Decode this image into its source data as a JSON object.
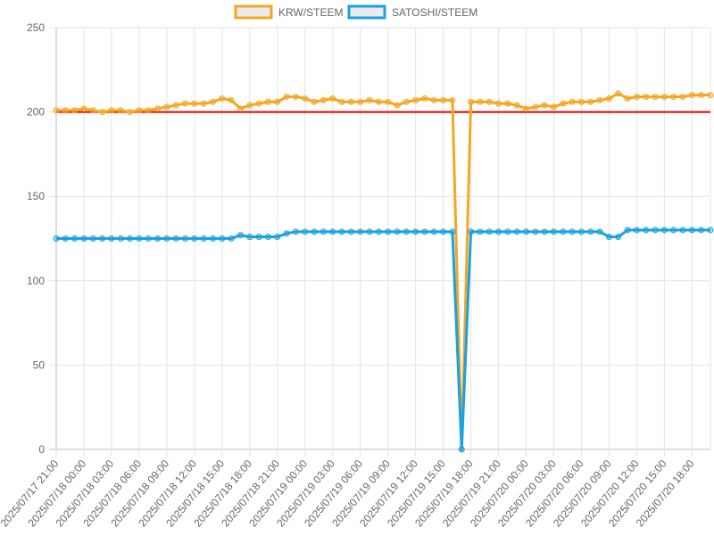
{
  "chart_data": {
    "type": "line",
    "legend_position": "top-center",
    "grid": true,
    "ylim": [
      0,
      250
    ],
    "y_ticks": [
      0,
      50,
      100,
      150,
      200,
      250
    ],
    "x_tick_labels": [
      "2025/07/17 21:00",
      "2025/07/18 00:00",
      "2025/07/18 03:00",
      "2025/07/18 06:00",
      "2025/07/18 09:00",
      "2025/07/18 12:00",
      "2025/07/18 15:00",
      "2025/07/18 18:00",
      "2025/07/18 21:00",
      "2025/07/19 00:00",
      "2025/07/19 03:00",
      "2025/07/19 06:00",
      "2025/07/19 09:00",
      "2025/07/19 12:00",
      "2025/07/19 15:00",
      "2025/07/19 18:00",
      "2025/07/19 21:00",
      "2025/07/20 00:00",
      "2025/07/20 03:00",
      "2025/07/20 06:00",
      "2025/07/20 09:00",
      "2025/07/20 12:00",
      "2025/07/20 15:00",
      "2025/07/20 18:00"
    ],
    "reference_line": {
      "value": 200,
      "color": "#e00000"
    },
    "series": [
      {
        "name": "KRW/STEEM",
        "color": "#f5a623",
        "values": [
          201,
          201,
          201,
          202,
          201,
          200,
          201,
          201,
          200,
          201,
          201,
          202,
          203,
          204,
          205,
          205,
          205,
          206,
          208,
          207,
          202,
          204,
          205,
          206,
          206,
          209,
          209,
          208,
          206,
          207,
          208,
          206,
          206,
          206,
          207,
          206,
          206,
          204,
          206,
          207,
          208,
          207,
          207,
          207,
          0,
          206,
          206,
          206,
          205,
          205,
          204,
          202,
          203,
          204,
          203,
          205,
          206,
          206,
          206,
          207,
          208,
          211,
          208,
          209,
          209,
          209,
          209,
          209,
          209,
          210,
          210,
          210
        ]
      },
      {
        "name": "SATOSHI/STEEM",
        "color": "#1ba1e2",
        "values": [
          125,
          125,
          125,
          125,
          125,
          125,
          125,
          125,
          125,
          125,
          125,
          125,
          125,
          125,
          125,
          125,
          125,
          125,
          125,
          125,
          127,
          126,
          126,
          126,
          126,
          128,
          129,
          129,
          129,
          129,
          129,
          129,
          129,
          129,
          129,
          129,
          129,
          129,
          129,
          129,
          129,
          129,
          129,
          129,
          0,
          129,
          129,
          129,
          129,
          129,
          129,
          129,
          129,
          129,
          129,
          129,
          129,
          129,
          129,
          129,
          126,
          126,
          130,
          130,
          130,
          130,
          130,
          130,
          130,
          130,
          130,
          130
        ]
      }
    ]
  }
}
